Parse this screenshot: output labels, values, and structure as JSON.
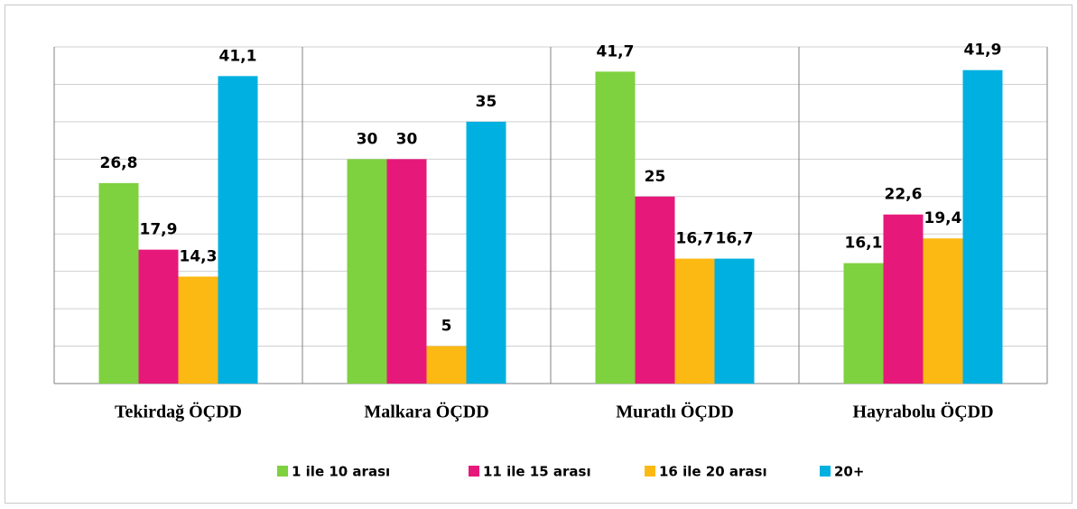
{
  "chart_data": {
    "type": "bar",
    "categories": [
      "Tekirdağ ÖÇDD",
      "Malkara ÖÇDD",
      "Muratlı ÖÇDD",
      "Hayrabolu ÖÇDD"
    ],
    "series": [
      {
        "name": "1 ile 10 arası",
        "color": "#7ed13f",
        "values": [
          26.8,
          30,
          41.7,
          16.1
        ],
        "value_labels": [
          "26,8",
          "30",
          "41,7",
          "16,1"
        ]
      },
      {
        "name": "11 ile 15 arası",
        "color": "#e6197a",
        "values": [
          17.9,
          30,
          25,
          22.6
        ],
        "value_labels": [
          "17,9",
          "30",
          "25",
          "22,6"
        ]
      },
      {
        "name": "16 ile 20 arası",
        "color": "#fdb913",
        "values": [
          14.3,
          5,
          16.7,
          19.4
        ],
        "value_labels": [
          "14,3",
          "5",
          "16,7",
          "19,4"
        ]
      },
      {
        "name": "20+",
        "color": "#00b0e0",
        "values": [
          41.1,
          35,
          16.7,
          41.9
        ],
        "value_labels": [
          "41,1",
          "35",
          "16,7",
          "41,9"
        ]
      }
    ],
    "ylim": [
      0,
      45
    ],
    "yticks": [
      0,
      5,
      10,
      15,
      20,
      25,
      30,
      35,
      40,
      45
    ],
    "grid": true,
    "legend": "bottom"
  }
}
